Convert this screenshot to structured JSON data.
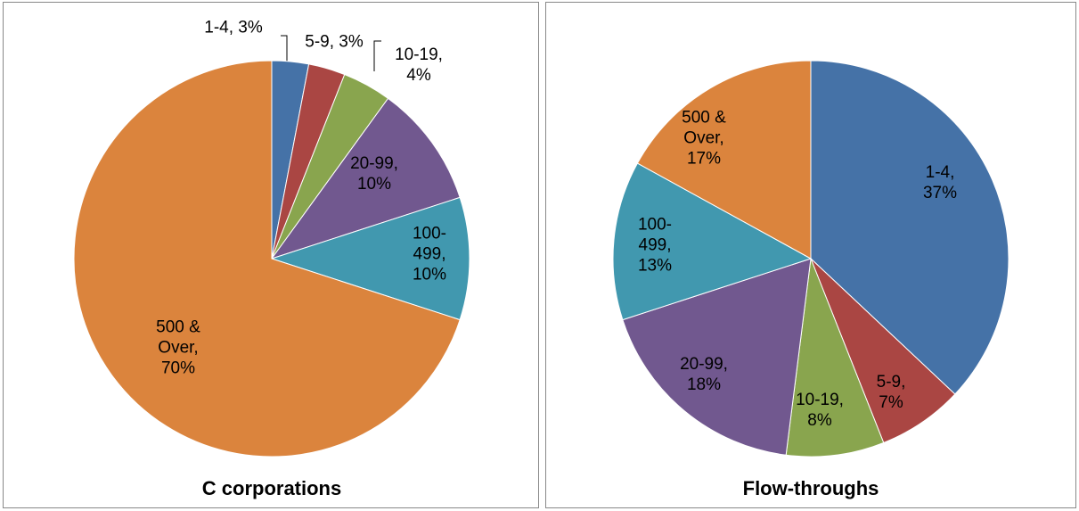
{
  "chart_data": [
    {
      "type": "pie",
      "title": "C corporations",
      "values": [
        3,
        3,
        4,
        10,
        10,
        70
      ],
      "value_labels": [
        "1-4, 3%",
        "5-9, 3%",
        "10-19, 4%",
        "20-99, 10%",
        "100-499, 10%",
        "500 & Over, 70%"
      ],
      "colors": [
        "#4572a7",
        "#aa4643",
        "#89a54e",
        "#71588f",
        "#4198af",
        "#db843d"
      ]
    },
    {
      "type": "pie",
      "title": "Flow-throughs",
      "values": [
        37,
        7,
        8,
        18,
        13,
        17
      ],
      "value_labels": [
        "1-4, 37%",
        "5-9, 7%",
        "10-19, 8%",
        "20-99, 18%",
        "100-499, 13%",
        "500 & Over, 17%"
      ],
      "colors": [
        "#4572a7",
        "#aa4643",
        "#89a54e",
        "#71588f",
        "#4198af",
        "#db843d"
      ]
    }
  ]
}
